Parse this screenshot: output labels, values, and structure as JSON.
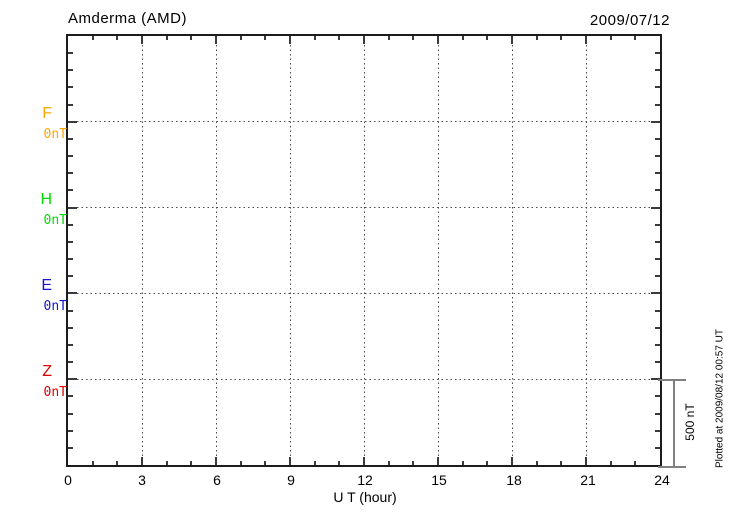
{
  "header": {
    "title": "Amderma (AMD)",
    "date": "2009/07/12"
  },
  "channels": [
    {
      "label": "F",
      "baseline_label": "0nT",
      "color": "#FFA500"
    },
    {
      "label": "H",
      "baseline_label": "0nT",
      "color": "#00DC00"
    },
    {
      "label": "E",
      "baseline_label": "0nT",
      "color": "#1414D0"
    },
    {
      "label": "Z",
      "baseline_label": "0nT",
      "color": "#E00000"
    }
  ],
  "xaxis": {
    "label": "U T (hour)",
    "ticks": [
      "0",
      "3",
      "6",
      "9",
      "12",
      "15",
      "18",
      "21",
      "24"
    ]
  },
  "scale_bar": {
    "label": "500 nT"
  },
  "footer_note": "Plotted at 2009/08/12 00:57 UT",
  "chart_data": {
    "type": "line",
    "title": "Amderma (AMD)",
    "date": "2009/07/12",
    "xlabel": "U T (hour)",
    "x_range_hours": [
      0,
      24
    ],
    "x_major_ticks_hours": [
      0,
      3,
      6,
      9,
      12,
      15,
      18,
      21,
      24
    ],
    "x_minor_tick_step_hours": 1,
    "y_scale_bar_nT": 500,
    "y_minor_tick_nT": 100,
    "series": [
      {
        "name": "F",
        "baseline_nT": 0,
        "color": "#FFA500",
        "values": []
      },
      {
        "name": "H",
        "baseline_nT": 0,
        "color": "#00DC00",
        "values": []
      },
      {
        "name": "E",
        "baseline_nT": 0,
        "color": "#1414D0",
        "values": []
      },
      {
        "name": "Z",
        "baseline_nT": 0,
        "color": "#E00000",
        "values": []
      }
    ],
    "grid": "dotted vertical line every 3 hours; dotted horizontal line at each channel 0 nT baseline",
    "legend_position": "left margin",
    "annotation": "Plotted at 2009/08/12 00:57 UT",
    "note": "No data traces visible for this day (empty magnetogram)"
  }
}
